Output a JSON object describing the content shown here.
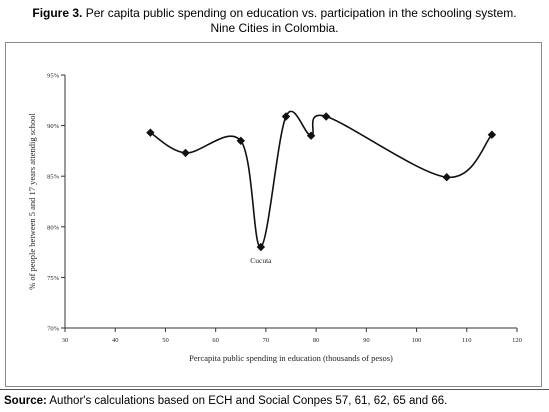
{
  "figure": {
    "label": "Figure 3.",
    "title_line1": " Per capita public spending on education vs. participation in the schooling system.",
    "title_line2": "Nine Cities in Colombia.",
    "source_label": "Source:",
    "source_text": " Author's calculations based on ECH and Social Conpes 57, 61, 62, 65 and 66."
  },
  "chart_data": {
    "type": "line",
    "xlabel": "Percapita public spending in education (thousands of pesos)",
    "ylabel": "% of people between 5 and 17 years attendig school",
    "xlim": [
      30,
      120
    ],
    "ylim": [
      70,
      95
    ],
    "x_ticks": [
      30,
      40,
      50,
      60,
      70,
      80,
      90,
      100,
      110,
      120
    ],
    "x_tick_labels": [
      "30",
      "40",
      "50",
      "60",
      "70",
      "80",
      "90",
      "100",
      "110",
      "120"
    ],
    "y_ticks": [
      70,
      75,
      80,
      85,
      90,
      95
    ],
    "y_tick_labels": [
      "70%",
      "75%",
      "80%",
      "85%",
      "90%",
      "95%"
    ],
    "grid": false,
    "smooth": true,
    "marker": "diamond",
    "points": [
      {
        "x": 47,
        "y": 89.3
      },
      {
        "x": 54,
        "y": 87.3
      },
      {
        "x": 65,
        "y": 88.5
      },
      {
        "x": 69,
        "y": 78.0
      },
      {
        "x": 74,
        "y": 90.9
      },
      {
        "x": 79,
        "y": 89.0
      },
      {
        "x": 82,
        "y": 90.9
      },
      {
        "x": 106,
        "y": 84.9
      },
      {
        "x": 115,
        "y": 89.1
      }
    ],
    "annotations": [
      {
        "text": "Cucuta",
        "x": 69,
        "y": 78.0
      }
    ]
  }
}
